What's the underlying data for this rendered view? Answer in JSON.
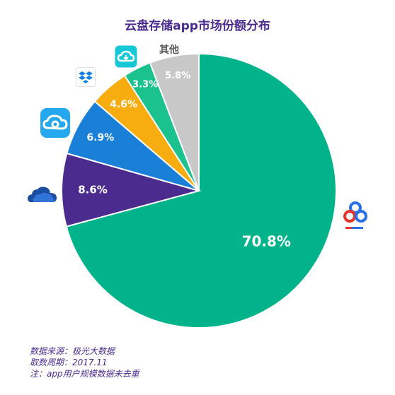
{
  "chart_data": {
    "type": "pie",
    "title": "云盘存储app市场份额分布",
    "slices": [
      {
        "value": 70.8,
        "label": "70.8%",
        "color": "#00b38a",
        "icon": "baidu-netdisk-icon"
      },
      {
        "value": 8.6,
        "label": "8.6%",
        "color": "#4b2c8e",
        "icon": "onedrive-icon"
      },
      {
        "value": 6.9,
        "label": "6.9%",
        "color": "#1a7fd6",
        "icon": "tencent-weiyun-icon"
      },
      {
        "value": 4.6,
        "label": "4.6%",
        "color": "#f7ac0f",
        "icon": "dropbox-icon"
      },
      {
        "value": 3.3,
        "label": "3.3%",
        "color": "#1cc28e",
        "icon": "cloud-app-icon"
      },
      {
        "value": 5.8,
        "label": "5.8%",
        "color": "#c8c8c8",
        "icon": "",
        "name": "其他"
      }
    ]
  },
  "footer": {
    "line1": "数据来源：极光大数据",
    "line2": "取数周期：2017.11",
    "line3": "注：app用户规模数据未去重"
  }
}
